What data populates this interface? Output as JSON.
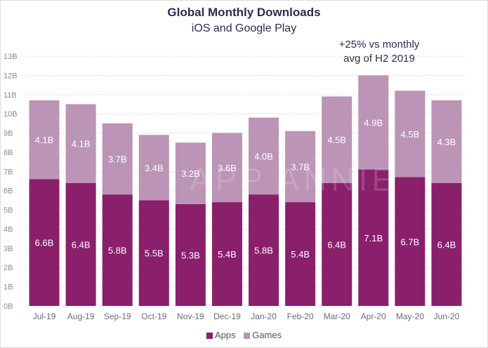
{
  "chart_data": {
    "type": "bar",
    "stacked": true,
    "title": "Global Monthly Downloads",
    "subtitle": "iOS and Google Play",
    "categories": [
      "Jul-19",
      "Aug-19",
      "Sep-19",
      "Oct-19",
      "Nov-19",
      "Dec-19",
      "Jan-20",
      "Feb-20",
      "Mar-20",
      "Apr-20",
      "May-20",
      "Jun-20"
    ],
    "series": [
      {
        "name": "Apps",
        "color": "#8a1f6c",
        "values": [
          6.6,
          6.4,
          5.8,
          5.5,
          5.3,
          5.4,
          5.8,
          5.4,
          6.4,
          7.1,
          6.7,
          6.4
        ],
        "labels": [
          "6.6B",
          "6.4B",
          "5.8B",
          "5.5B",
          "5.3B",
          "5.4B",
          "5.8B",
          "5.4B",
          "6.4B",
          "7.1B",
          "6.7B",
          "6.4B"
        ]
      },
      {
        "name": "Games",
        "color": "#bb94b6",
        "values": [
          4.1,
          4.1,
          3.7,
          3.4,
          3.2,
          3.6,
          4.0,
          3.7,
          4.5,
          4.9,
          4.5,
          4.3
        ],
        "labels": [
          "4.1B",
          "4.1B",
          "3.7B",
          "3.4B",
          "3.2B",
          "3.6B",
          "4.0B",
          "3.7B",
          "4.5B",
          "4.9B",
          "4.5B",
          "4.3B"
        ]
      }
    ],
    "yticks": [
      "0B",
      "1B",
      "2B",
      "3B",
      "4B",
      "5B",
      "6B",
      "7B",
      "8B",
      "9B",
      "10B",
      "11B",
      "12B",
      "13B"
    ],
    "ylim": [
      0,
      13
    ],
    "grid": true,
    "legend": "bottom",
    "annotation": {
      "line1": "+25% vs monthly",
      "line2": "avg of H2 2019",
      "category": "Apr-20"
    },
    "watermark": "APP ANNIE"
  }
}
